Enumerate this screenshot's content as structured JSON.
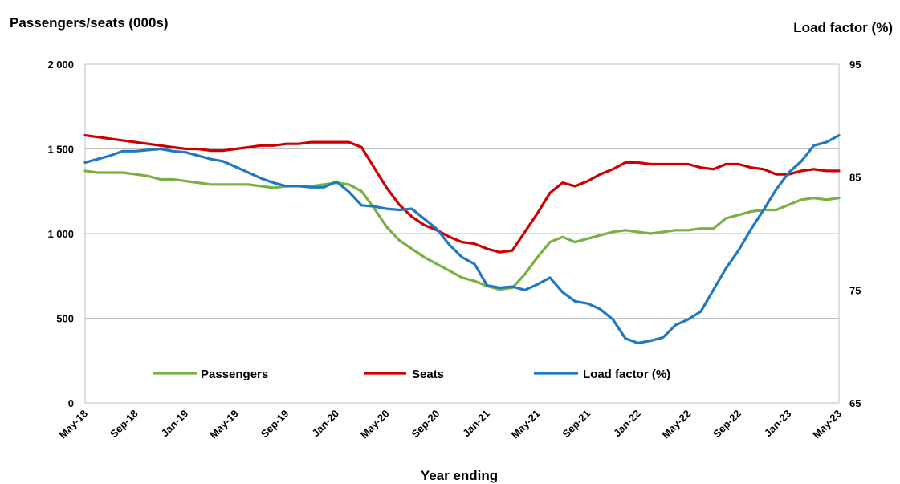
{
  "chart_data": {
    "type": "line",
    "left_axis_title": "Passengers/seats (000s)",
    "right_axis_title": "Load factor (%)",
    "xlabel": "Year ending",
    "left_ylim": [
      0,
      2000
    ],
    "right_ylim": [
      65,
      95
    ],
    "left_ticks": [
      0,
      500,
      1000,
      1500,
      2000
    ],
    "left_tick_labels": [
      "0",
      "500",
      "1 000",
      "1 500",
      "2 000"
    ],
    "right_ticks": [
      65,
      75,
      85,
      95
    ],
    "right_tick_labels": [
      "65",
      "75",
      "85",
      "95"
    ],
    "grid": "horizontal",
    "legend_position": "bottom-inside",
    "x_tick_labels": [
      "May-18",
      "Sep-18",
      "Jan-19",
      "May-19",
      "Sep-19",
      "Jan-20",
      "May-20",
      "Sep-20",
      "Jan-21",
      "May-21",
      "Sep-21",
      "Jan-22",
      "May-22",
      "Sep-22",
      "Jan-23",
      "May-23"
    ],
    "x": [
      "May-18",
      "Jun-18",
      "Jul-18",
      "Aug-18",
      "Sep-18",
      "Oct-18",
      "Nov-18",
      "Dec-18",
      "Jan-19",
      "Feb-19",
      "Mar-19",
      "Apr-19",
      "May-19",
      "Jun-19",
      "Jul-19",
      "Aug-19",
      "Sep-19",
      "Oct-19",
      "Nov-19",
      "Dec-19",
      "Jan-20",
      "Feb-20",
      "Mar-20",
      "Apr-20",
      "May-20",
      "Jun-20",
      "Jul-20",
      "Aug-20",
      "Sep-20",
      "Oct-20",
      "Nov-20",
      "Dec-20",
      "Jan-21",
      "Feb-21",
      "Mar-21",
      "Apr-21",
      "May-21",
      "Jun-21",
      "Jul-21",
      "Aug-21",
      "Sep-21",
      "Oct-21",
      "Nov-21",
      "Dec-21",
      "Jan-22",
      "Feb-22",
      "Mar-22",
      "Apr-22",
      "May-22",
      "Jun-22",
      "Jul-22",
      "Aug-22",
      "Sep-22",
      "Oct-22",
      "Nov-22",
      "Dec-22",
      "Jan-23",
      "Feb-23",
      "Mar-23",
      "Apr-23",
      "May-23"
    ],
    "series": [
      {
        "name": "Passengers",
        "axis": "left",
        "color": "#78b042",
        "values": [
          1370,
          1360,
          1360,
          1360,
          1350,
          1340,
          1320,
          1320,
          1310,
          1300,
          1290,
          1290,
          1290,
          1290,
          1280,
          1270,
          1280,
          1280,
          1280,
          1290,
          1300,
          1290,
          1250,
          1150,
          1040,
          960,
          910,
          860,
          820,
          780,
          740,
          720,
          690,
          670,
          680,
          760,
          860,
          950,
          980,
          950,
          970,
          990,
          1010,
          1020,
          1010,
          1000,
          1010,
          1020,
          1020,
          1030,
          1030,
          1090,
          1110,
          1130,
          1140,
          1140,
          1170,
          1200,
          1210,
          1200,
          1210
        ]
      },
      {
        "name": "Seats",
        "axis": "left",
        "color": "#cc0000",
        "values": [
          1580,
          1570,
          1560,
          1550,
          1540,
          1530,
          1520,
          1510,
          1500,
          1500,
          1490,
          1490,
          1500,
          1510,
          1520,
          1520,
          1530,
          1530,
          1540,
          1540,
          1540,
          1540,
          1510,
          1390,
          1270,
          1170,
          1100,
          1050,
          1020,
          980,
          950,
          940,
          910,
          890,
          900,
          1010,
          1120,
          1240,
          1300,
          1280,
          1310,
          1350,
          1380,
          1420,
          1420,
          1410,
          1410,
          1410,
          1410,
          1390,
          1380,
          1410,
          1410,
          1390,
          1380,
          1350,
          1350,
          1370,
          1380,
          1370,
          1370
        ]
      },
      {
        "name": "Load factor (%)",
        "axis": "right",
        "color": "#1f78c1",
        "values": [
          86.3,
          86.6,
          86.9,
          87.3,
          87.3,
          87.4,
          87.5,
          87.3,
          87.2,
          86.9,
          86.6,
          86.4,
          85.9,
          85.4,
          84.9,
          84.5,
          84.2,
          84.2,
          84.1,
          84.1,
          84.6,
          83.7,
          82.5,
          82.4,
          82.2,
          82.1,
          82.2,
          81.3,
          80.4,
          79.0,
          77.9,
          77.3,
          75.4,
          75.2,
          75.3,
          75.0,
          75.5,
          76.1,
          74.8,
          74.0,
          73.8,
          73.3,
          72.4,
          70.7,
          70.3,
          70.5,
          70.8,
          71.9,
          72.4,
          73.1,
          75.0,
          76.9,
          78.5,
          80.4,
          82.1,
          83.9,
          85.4,
          86.4,
          87.8,
          88.1,
          88.7
        ]
      }
    ]
  }
}
